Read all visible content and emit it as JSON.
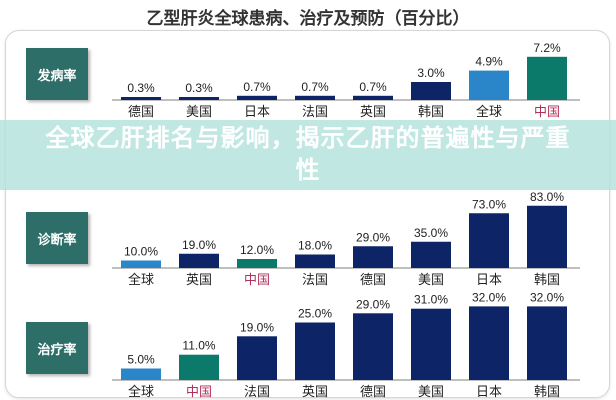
{
  "title": "乙型肝炎全球患病、治疗及预防（百分比）",
  "banner": "全球乙肝排名与影响，揭示乙肝的普遍性与严重性",
  "colors": {
    "navy": "#0d2466",
    "global": "#2a86c8",
    "china": "#0b7a6b",
    "china_label": "#b0305a",
    "label_box": "#2e6e69"
  },
  "chart_data": [
    {
      "type": "bar",
      "row_label": "发病率",
      "categories": [
        "德国",
        "美国",
        "日本",
        "法国",
        "英国",
        "韩国",
        "全球",
        "中国"
      ],
      "values": [
        0.3,
        0.3,
        0.7,
        0.7,
        0.7,
        3.0,
        4.9,
        7.2
      ],
      "labels": [
        "0.3%",
        "0.3%",
        "0.7%",
        "0.7%",
        "0.7%",
        "3.0%",
        "4.9%",
        "7.2%"
      ]
    },
    {
      "type": "bar",
      "row_label": "诊断率",
      "categories": [
        "全球",
        "英国",
        "中国",
        "法国",
        "德国",
        "美国",
        "日本",
        "韩国"
      ],
      "values": [
        10.0,
        19.0,
        12.0,
        18.0,
        29.0,
        35.0,
        73.0,
        83.0
      ],
      "labels": [
        "10.0%",
        "19.0%",
        "12.0%",
        "18.0%",
        "29.0%",
        "35.0%",
        "73.0%",
        "83.0%"
      ]
    },
    {
      "type": "bar",
      "row_label": "治疗率",
      "categories": [
        "全球",
        "中国",
        "法国",
        "英国",
        "德国",
        "美国",
        "日本",
        "韩国"
      ],
      "values": [
        5.0,
        11.0,
        19.0,
        25.0,
        29.0,
        31.0,
        32.0,
        32.0
      ],
      "labels": [
        "5.0%",
        "11.0%",
        "19.0%",
        "25.0%",
        "29.0%",
        "31.0%",
        "32.0%",
        "32.0%"
      ]
    }
  ]
}
